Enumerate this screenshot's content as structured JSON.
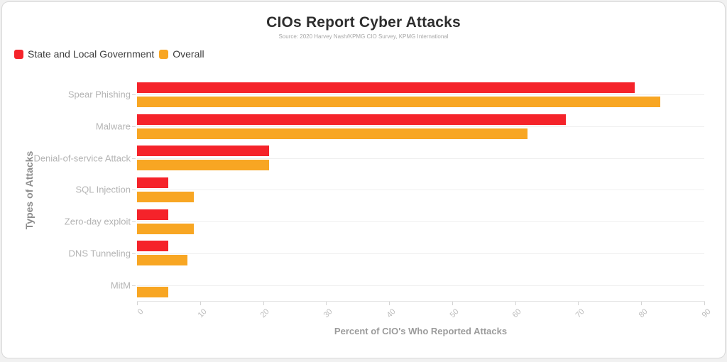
{
  "chart_data": {
    "type": "bar",
    "orientation": "horizontal",
    "title": "CIOs Report Cyber Attacks",
    "subtitle": "Source: 2020 Harvey Nash/KPMG CIO Survey, KPMG International",
    "xlabel": "Percent of CIO's Who Reported Attacks",
    "ylabel": "Types of Attacks",
    "xlim": [
      0,
      90
    ],
    "xticks": [
      0,
      10,
      20,
      30,
      40,
      50,
      60,
      70,
      80,
      90
    ],
    "grid": "horizontal-category-centers",
    "legend_position": "top-left",
    "categories": [
      "Spear Phishing",
      "Malware",
      "Denial-of-service Attack",
      "SQL Injection",
      "Zero-day exploit",
      "DNS Tunneling",
      "MitM"
    ],
    "series": [
      {
        "name": "State and Local Government",
        "color": "#f5232a",
        "values": [
          79,
          68,
          21,
          5,
          5,
          5,
          0
        ]
      },
      {
        "name": "Overall",
        "color": "#f8a623",
        "values": [
          83,
          62,
          21,
          9,
          9,
          8,
          5
        ]
      }
    ]
  },
  "colors": {
    "page_background": "#f1f1f1",
    "card_border": "#d9d9d9",
    "state_local_red": "#f5232a",
    "overall_orange": "#f8a623"
  }
}
